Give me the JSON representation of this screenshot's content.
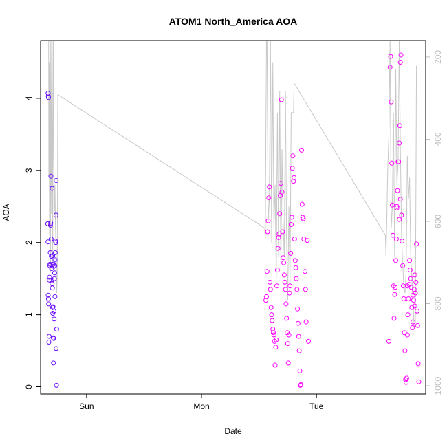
{
  "chart_data": {
    "type": "scatter",
    "title": "ATOM1 North_America AOA",
    "xlabel": "Date",
    "ylabel": "AOA",
    "x_ticks": [
      {
        "label": "Sun",
        "day": 1.0
      },
      {
        "label": "Mon",
        "day": 2.0
      },
      {
        "label": "Tue",
        "day": 3.0
      }
    ],
    "xlim_days": [
      0.6,
      3.95
    ],
    "ylim": [
      -0.1,
      4.8
    ],
    "y_ticks": [
      0,
      1,
      2,
      3,
      4
    ],
    "secondary_axis": {
      "ylim": [
        1020,
        160
      ],
      "ticks": [
        200,
        400,
        600,
        800,
        1000
      ],
      "color": "#bdbdbd"
    },
    "grid": false,
    "legend": "none",
    "colors": {
      "early": "#6a0dff",
      "late": "#ff00ff",
      "line": "#c8c8c8"
    },
    "points": [
      [
        0.665,
        4.07
      ],
      [
        0.667,
        4.03
      ],
      [
        0.669,
        4.01
      ],
      [
        0.662,
        2.26
      ],
      [
        0.664,
        2.01
      ],
      [
        0.666,
        1.27
      ],
      [
        0.668,
        1.22
      ],
      [
        0.67,
        1.15
      ],
      [
        0.672,
        0.62
      ],
      [
        0.674,
        0.7
      ],
      [
        0.676,
        1.48
      ],
      [
        0.678,
        1.52
      ],
      [
        0.68,
        1.68
      ],
      [
        0.682,
        1.7
      ],
      [
        0.684,
        1.86
      ],
      [
        0.686,
        2.24
      ],
      [
        0.688,
        2.27
      ],
      [
        0.69,
        2.92
      ],
      [
        0.692,
        2.05
      ],
      [
        0.694,
        1.81
      ],
      [
        0.696,
        1.64
      ],
      [
        0.698,
        1.48
      ],
      [
        0.7,
        1.43
      ],
      [
        0.702,
        1.37
      ],
      [
        0.704,
        1.1
      ],
      [
        0.706,
        1.02
      ],
      [
        0.708,
        1.11
      ],
      [
        0.71,
        0.68
      ],
      [
        0.712,
        0.33
      ],
      [
        0.714,
        0.67
      ],
      [
        0.716,
        1.05
      ],
      [
        0.718,
        0.94
      ],
      [
        0.72,
        1.5
      ],
      [
        0.722,
        1.58
      ],
      [
        0.724,
        1.68
      ],
      [
        0.726,
        1.76
      ],
      [
        0.728,
        1.86
      ],
      [
        0.73,
        2.02
      ],
      [
        0.732,
        2.0
      ],
      [
        0.734,
        2.38
      ],
      [
        0.736,
        2.86
      ],
      [
        0.7,
        2.75
      ],
      [
        0.705,
        1.82
      ],
      [
        0.71,
        1.7
      ],
      [
        0.715,
        1.67
      ],
      [
        0.725,
        1.25
      ],
      [
        0.735,
        0.53
      ],
      [
        0.74,
        0.8
      ],
      [
        0.738,
        0.02
      ],
      [
        2.56,
        1.2
      ],
      [
        2.565,
        1.25
      ],
      [
        2.57,
        1.6
      ],
      [
        2.575,
        2.15
      ],
      [
        2.58,
        2.3
      ],
      [
        2.585,
        2.62
      ],
      [
        2.59,
        2.77
      ],
      [
        2.595,
        1.45
      ],
      [
        2.6,
        1.35
      ],
      [
        2.605,
        1.1
      ],
      [
        2.61,
        1.0
      ],
      [
        2.615,
        0.92
      ],
      [
        2.62,
        0.8
      ],
      [
        2.625,
        0.75
      ],
      [
        2.63,
        0.72
      ],
      [
        2.635,
        0.63
      ],
      [
        2.64,
        0.3
      ],
      [
        2.645,
        0.55
      ],
      [
        2.65,
        0.65
      ],
      [
        2.655,
        1.4
      ],
      [
        2.66,
        1.62
      ],
      [
        2.665,
        1.92
      ],
      [
        2.67,
        2.07
      ],
      [
        2.675,
        2.12
      ],
      [
        2.68,
        2.4
      ],
      [
        2.685,
        2.65
      ],
      [
        2.69,
        2.82
      ],
      [
        2.695,
        3.98
      ],
      [
        2.7,
        2.7
      ],
      [
        2.705,
        2.15
      ],
      [
        2.71,
        1.79
      ],
      [
        2.715,
        1.72
      ],
      [
        2.72,
        1.55
      ],
      [
        2.725,
        1.45
      ],
      [
        2.73,
        1.35
      ],
      [
        2.735,
        1.15
      ],
      [
        2.74,
        0.95
      ],
      [
        2.745,
        0.75
      ],
      [
        2.75,
        0.6
      ],
      [
        2.755,
        0.33
      ],
      [
        2.76,
        0.72
      ],
      [
        2.765,
        1.3
      ],
      [
        2.77,
        1.4
      ],
      [
        2.775,
        1.85
      ],
      [
        2.78,
        2.25
      ],
      [
        2.785,
        2.35
      ],
      [
        2.79,
        3.03
      ],
      [
        2.795,
        3.2
      ],
      [
        2.8,
        2.85
      ],
      [
        2.805,
        2.9
      ],
      [
        2.81,
        2.05
      ],
      [
        2.815,
        1.75
      ],
      [
        2.82,
        1.65
      ],
      [
        2.825,
        1.5
      ],
      [
        2.83,
        1.35
      ],
      [
        2.835,
        1.08
      ],
      [
        2.84,
        0.88
      ],
      [
        2.845,
        0.7
      ],
      [
        2.85,
        0.5
      ],
      [
        2.855,
        0.22
      ],
      [
        2.86,
        0.02
      ],
      [
        2.865,
        0.03
      ],
      [
        2.87,
        3.28
      ],
      [
        2.875,
        2.53
      ],
      [
        2.88,
        2.35
      ],
      [
        2.885,
        2.33
      ],
      [
        2.89,
        2.05
      ],
      [
        2.9,
        1.6
      ],
      [
        2.905,
        1.35
      ],
      [
        2.91,
        0.9
      ],
      [
        2.92,
        2.03
      ],
      [
        2.93,
        0.63
      ],
      [
        3.63,
        0.63
      ],
      [
        3.64,
        4.43
      ],
      [
        3.645,
        4.58
      ],
      [
        3.65,
        3.95
      ],
      [
        3.655,
        3.1
      ],
      [
        3.66,
        2.52
      ],
      [
        3.665,
        2.1
      ],
      [
        3.67,
        1.4
      ],
      [
        3.675,
        0.95
      ],
      [
        3.68,
        1.28
      ],
      [
        3.685,
        1.38
      ],
      [
        3.69,
        1.75
      ],
      [
        3.695,
        2.05
      ],
      [
        3.7,
        2.5
      ],
      [
        3.705,
        2.72
      ],
      [
        3.71,
        3.12
      ],
      [
        3.715,
        3.12
      ],
      [
        3.72,
        3.38
      ],
      [
        3.725,
        3.62
      ],
      [
        3.73,
        4.5
      ],
      [
        3.735,
        4.6
      ],
      [
        3.74,
        2.38
      ],
      [
        3.745,
        2.02
      ],
      [
        3.75,
        1.68
      ],
      [
        3.755,
        1.4
      ],
      [
        3.76,
        1.22
      ],
      [
        3.765,
        0.75
      ],
      [
        3.77,
        0.5
      ],
      [
        3.775,
        0.1
      ],
      [
        3.78,
        0.06
      ],
      [
        3.785,
        0.12
      ],
      [
        3.79,
        0.72
      ],
      [
        3.795,
        1.0
      ],
      [
        3.8,
        1.22
      ],
      [
        3.805,
        1.42
      ],
      [
        3.81,
        1.75
      ],
      [
        3.815,
        1.62
      ],
      [
        3.82,
        1.5
      ],
      [
        3.825,
        1.38
      ],
      [
        3.83,
        1.1
      ],
      [
        3.835,
        0.82
      ],
      [
        3.84,
        0.9
      ],
      [
        3.845,
        1.2
      ],
      [
        3.85,
        1.35
      ],
      [
        3.855,
        1.55
      ],
      [
        3.86,
        1.3
      ],
      [
        3.865,
        1.45
      ],
      [
        3.87,
        1.98
      ],
      [
        3.875,
        1.05
      ],
      [
        3.88,
        0.85
      ],
      [
        3.885,
        0.32
      ],
      [
        3.89,
        0.07
      ],
      [
        3.7,
        2.48
      ],
      [
        3.72,
        2.32
      ],
      [
        3.73,
        2.6
      ],
      [
        3.79,
        1.4
      ],
      [
        3.84,
        1.27
      ],
      [
        3.855,
        1.12
      ]
    ],
    "line_points": [
      [
        0.67,
        4.8
      ],
      [
        0.672,
        2.9
      ],
      [
        0.675,
        4.5
      ],
      [
        0.678,
        2.1
      ],
      [
        0.682,
        4.8
      ],
      [
        0.686,
        1.6
      ],
      [
        0.69,
        4.8
      ],
      [
        0.695,
        2.4
      ],
      [
        0.7,
        4.8
      ],
      [
        0.705,
        1.7
      ],
      [
        0.71,
        4.8
      ],
      [
        0.715,
        3.2
      ],
      [
        0.72,
        2.4
      ],
      [
        0.725,
        2.8
      ],
      [
        0.73,
        2.2
      ],
      [
        0.735,
        1.9
      ],
      [
        0.74,
        1.3
      ],
      [
        0.745,
        1.5
      ],
      [
        0.75,
        4.05
      ],
      [
        2.55,
        2.2
      ],
      [
        2.555,
        2.05
      ],
      [
        2.56,
        3.5
      ],
      [
        2.565,
        4.8
      ],
      [
        2.57,
        4.8
      ],
      [
        2.58,
        2.3
      ],
      [
        2.59,
        2.6
      ],
      [
        2.6,
        4.8
      ],
      [
        2.61,
        2.0
      ],
      [
        2.62,
        4.5
      ],
      [
        2.63,
        2.2
      ],
      [
        2.64,
        2.8
      ],
      [
        2.65,
        1.5
      ],
      [
        2.66,
        3.8
      ],
      [
        2.67,
        1.8
      ],
      [
        2.68,
        4.1
      ],
      [
        2.69,
        1.6
      ],
      [
        2.7,
        3.3
      ],
      [
        2.71,
        2.3
      ],
      [
        2.72,
        1.8
      ],
      [
        2.73,
        4.1
      ],
      [
        2.74,
        2.1
      ],
      [
        2.75,
        1.2
      ],
      [
        2.76,
        2.5
      ],
      [
        2.77,
        1.4
      ],
      [
        2.78,
        3.8
      ],
      [
        2.79,
        3.8
      ],
      [
        2.8,
        3.8
      ],
      [
        2.805,
        4.2
      ],
      [
        2.81,
        4.2
      ],
      [
        3.6,
        2.1
      ],
      [
        3.605,
        1.8
      ],
      [
        3.61,
        2.2
      ],
      [
        3.62,
        3.0
      ],
      [
        3.63,
        3.5
      ],
      [
        3.64,
        4.8
      ],
      [
        3.65,
        2.2
      ],
      [
        3.66,
        2.5
      ],
      [
        3.67,
        3.8
      ],
      [
        3.68,
        1.8
      ],
      [
        3.69,
        4.4
      ],
      [
        3.7,
        2.8
      ],
      [
        3.71,
        3.1
      ],
      [
        3.72,
        4.8
      ],
      [
        3.73,
        3.3
      ],
      [
        3.74,
        2.1
      ],
      [
        3.75,
        1.7
      ],
      [
        3.76,
        1.4
      ],
      [
        3.77,
        1.3
      ],
      [
        3.78,
        1.6
      ],
      [
        3.79,
        3.2
      ],
      [
        3.8,
        2.6
      ],
      [
        3.81,
        2.9
      ],
      [
        3.82,
        1.8
      ],
      [
        3.83,
        1.5
      ],
      [
        3.84,
        1.2
      ],
      [
        3.85,
        0.8
      ],
      [
        3.86,
        0.9
      ],
      [
        3.87,
        4.45
      ]
    ]
  }
}
